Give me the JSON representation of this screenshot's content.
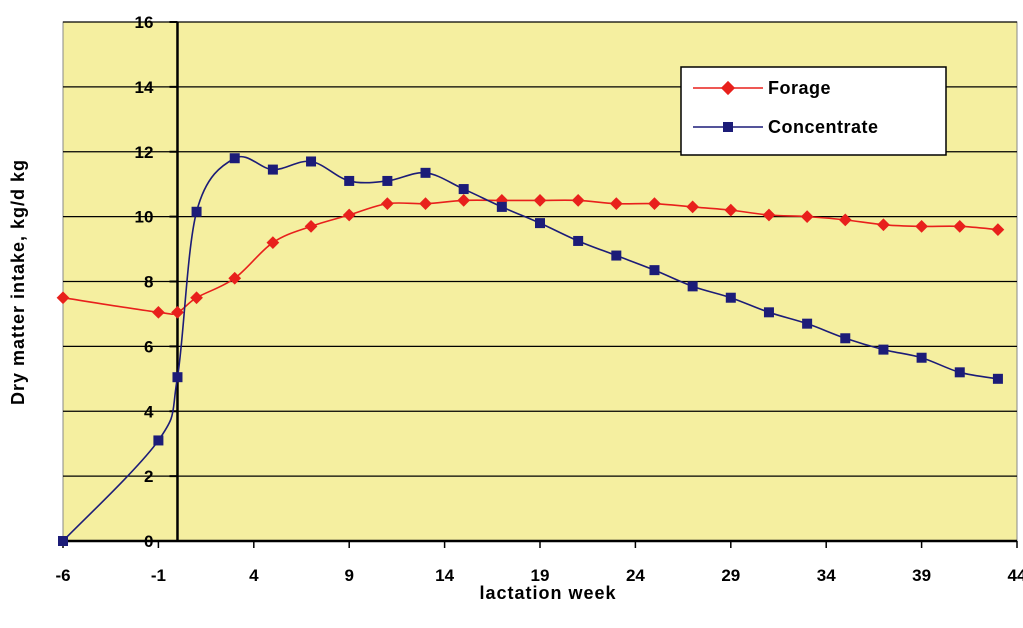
{
  "chart_data": {
    "type": "line",
    "xlabel": "lactation week",
    "ylabel": "Dry matter intake, kg/d kg",
    "xlim": [
      -6,
      44
    ],
    "ylim": [
      0,
      16
    ],
    "x_ticks": [
      -6,
      -1,
      4,
      9,
      14,
      19,
      24,
      29,
      34,
      39,
      44
    ],
    "y_ticks": [
      0,
      2,
      4,
      6,
      8,
      10,
      12,
      14,
      16
    ],
    "grid": "horizontal",
    "legend_position": "top-right",
    "plot_background": "#F5EFA0",
    "series": [
      {
        "name": "Forage",
        "color": "#E8201C",
        "marker": "diamond",
        "x": [
          -6,
          -1,
          0,
          1,
          3,
          5,
          7,
          9,
          11,
          13,
          15,
          17,
          19,
          21,
          23,
          25,
          27,
          29,
          31,
          33,
          35,
          37,
          39,
          41,
          43
        ],
        "values": [
          7.5,
          7.05,
          7.05,
          7.5,
          8.1,
          9.2,
          9.7,
          10.05,
          10.4,
          10.4,
          10.5,
          10.5,
          10.5,
          10.5,
          10.4,
          10.4,
          10.3,
          10.2,
          10.05,
          10.0,
          9.9,
          9.75,
          9.7,
          9.7,
          9.6
        ]
      },
      {
        "name": "Concentrate",
        "color": "#1C1C78",
        "marker": "square",
        "x": [
          -6,
          -1,
          0,
          1,
          3,
          5,
          7,
          9,
          11,
          13,
          15,
          17,
          19,
          21,
          23,
          25,
          27,
          29,
          31,
          33,
          35,
          37,
          39,
          41,
          43
        ],
        "values": [
          0,
          3.1,
          5.05,
          10.15,
          11.8,
          11.45,
          11.7,
          11.1,
          11.1,
          11.35,
          10.85,
          10.3,
          9.8,
          9.25,
          8.8,
          8.35,
          7.85,
          7.5,
          7.05,
          6.7,
          6.25,
          5.9,
          5.65,
          5.2,
          5.0
        ]
      }
    ]
  }
}
